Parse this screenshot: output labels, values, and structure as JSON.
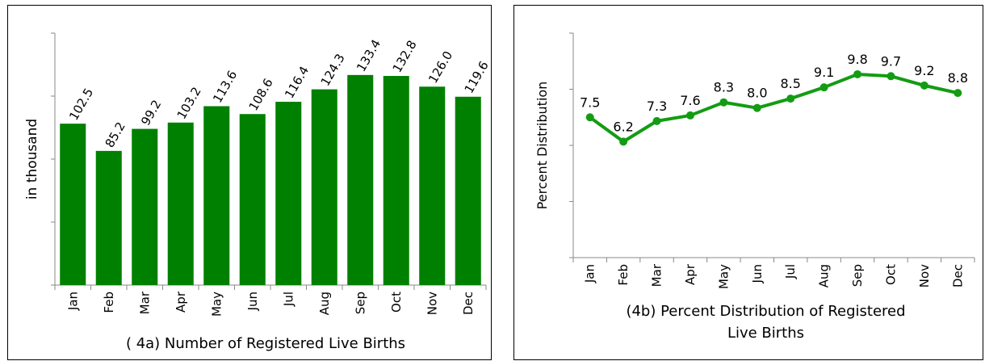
{
  "chart_data": [
    {
      "type": "bar",
      "title": "( 4a) Number of Registered Live Births",
      "ylabel": "in thousand",
      "xlabel": "",
      "categories": [
        "Jan",
        "Feb",
        "Mar",
        "Apr",
        "May",
        "Jun",
        "Jul",
        "Aug",
        "Sep",
        "Oct",
        "Nov",
        "Dec"
      ],
      "values": [
        102.5,
        85.2,
        99.2,
        103.2,
        113.6,
        108.6,
        116.4,
        124.3,
        133.4,
        132.8,
        126.0,
        119.6
      ],
      "value_labels": [
        "102.5",
        "85.2",
        "99.2",
        "103.2",
        "113.6",
        "108.6",
        "116.4",
        "124.3",
        "133.4",
        "132.8",
        "126.0",
        "119.6"
      ],
      "ylim": [
        0,
        160
      ],
      "grid": false,
      "legend": "none",
      "bar_color": "#008000"
    },
    {
      "type": "line",
      "title": "(4b) Percent Distribution of Registered Live Births",
      "ylabel": "Percent Distribution",
      "xlabel": "",
      "categories": [
        "Jan",
        "Feb",
        "Mar",
        "Apr",
        "May",
        "Jun",
        "Jul",
        "Aug",
        "Sep",
        "Oct",
        "Nov",
        "Dec"
      ],
      "values": [
        7.5,
        6.2,
        7.3,
        7.6,
        8.3,
        8.0,
        8.5,
        9.1,
        9.8,
        9.7,
        9.2,
        8.8
      ],
      "value_labels": [
        "7.5",
        "6.2",
        "7.3",
        "7.6",
        "8.3",
        "8.0",
        "8.5",
        "9.1",
        "9.8",
        "9.7",
        "9.2",
        "8.8"
      ],
      "ylim": [
        0,
        12
      ],
      "grid": false,
      "legend": "none",
      "line_color": "#139c13"
    }
  ]
}
